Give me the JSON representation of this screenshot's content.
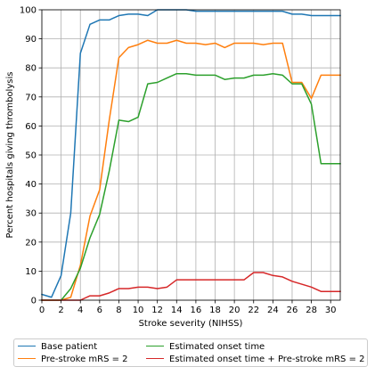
{
  "chart_data": {
    "type": "line",
    "title": "",
    "xlabel": "Stroke severity (NIHSS)",
    "ylabel": "Percent hospitals giving thrombolysis",
    "xlim": [
      0,
      31
    ],
    "ylim": [
      0,
      100
    ],
    "xticks": [
      0,
      2,
      4,
      6,
      8,
      10,
      12,
      14,
      16,
      18,
      20,
      22,
      24,
      26,
      28,
      30
    ],
    "yticks": [
      0,
      10,
      20,
      30,
      40,
      50,
      60,
      70,
      80,
      90,
      100
    ],
    "xtick_labels": [
      "0",
      "2",
      "4",
      "6",
      "8",
      "10",
      "12",
      "14",
      "16",
      "18",
      "20",
      "22",
      "24",
      "26",
      "28",
      "30"
    ],
    "ytick_labels": [
      "0",
      "10",
      "20",
      "30",
      "40",
      "50",
      "60",
      "70",
      "80",
      "90",
      "100"
    ],
    "grid": true,
    "legend_position": "bottom",
    "x": [
      0,
      1,
      2,
      3,
      4,
      5,
      6,
      7,
      8,
      9,
      10,
      11,
      12,
      13,
      14,
      15,
      16,
      17,
      18,
      19,
      20,
      21,
      22,
      23,
      24,
      25,
      26,
      27,
      28,
      29,
      30,
      31
    ],
    "series": [
      {
        "name": "Base patient",
        "color": "#1f77b4",
        "values": [
          2,
          1,
          8.5,
          30,
          85,
          95,
          96.5,
          96.5,
          98,
          98.5,
          98.5,
          98,
          100,
          100,
          100,
          100,
          99.5,
          99.5,
          99.5,
          99.5,
          99.5,
          99.5,
          99.5,
          99.5,
          99.5,
          99.5,
          98.5,
          98.5,
          98,
          98,
          98,
          98
        ]
      },
      {
        "name": "Pre-stroke mRS = 2",
        "color": "#ff7f0e",
        "values": [
          0,
          0,
          0,
          1,
          12,
          29,
          38,
          62,
          83.5,
          87,
          88,
          89.5,
          88.5,
          88.5,
          89.5,
          88.5,
          88.5,
          88,
          88.5,
          87,
          88.5,
          88.5,
          88.5,
          88,
          88.5,
          88.5,
          75,
          75,
          69.5,
          77.5,
          77.5,
          77.5
        ]
      },
      {
        "name": "Estimated onset time",
        "color": "#2ca02c",
        "values": [
          0,
          0,
          0,
          4,
          11,
          21.5,
          29.5,
          44.5,
          62,
          61.5,
          63,
          74.5,
          75,
          76.5,
          78,
          78,
          77.5,
          77.5,
          77.5,
          76,
          76.5,
          76.5,
          77.5,
          77.5,
          78,
          77.5,
          74.5,
          74.5,
          67.5,
          47,
          47,
          47
        ]
      },
      {
        "name": "Estimated onset time + Pre-stroke mRS = 2",
        "color": "#d62728",
        "values": [
          0,
          0,
          0,
          0,
          0,
          1.5,
          1.5,
          2.5,
          4,
          4,
          4.5,
          4.5,
          4,
          4.5,
          7,
          7,
          7,
          7,
          7,
          7,
          7,
          7,
          9.5,
          9.5,
          8.5,
          8,
          6.5,
          5.5,
          4.5,
          3,
          3,
          3
        ]
      }
    ]
  }
}
